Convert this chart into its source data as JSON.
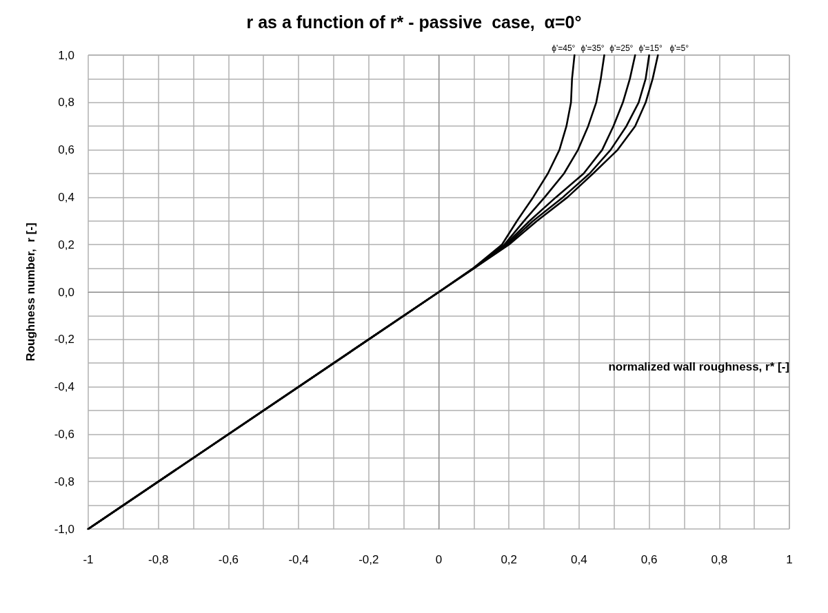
{
  "chart_data": {
    "type": "line",
    "title": "r as a function of r* - passive  case,  α=0°",
    "xlabel": "normalized wall roughness, r* [-]",
    "ylabel": "Roughness number,  r [-]",
    "series": [
      {
        "name": "ϕ'=45°",
        "color": "#000000",
        "x": [
          -1,
          0,
          0.098,
          0.18,
          0.223,
          0.269,
          0.311,
          0.344,
          0.364,
          0.377,
          0.38,
          0.387
        ],
        "values": [
          -1,
          0,
          0.1,
          0.2,
          0.3,
          0.4,
          0.5,
          0.6,
          0.7,
          0.8,
          0.9,
          1.0
        ]
      },
      {
        "name": "ϕ'=35°",
        "color": "#000000",
        "x": [
          -1,
          0,
          0.098,
          0.187,
          0.243,
          0.302,
          0.357,
          0.397,
          0.426,
          0.449,
          0.462,
          0.472
        ],
        "values": [
          -1,
          0,
          0.1,
          0.2,
          0.3,
          0.4,
          0.5,
          0.6,
          0.7,
          0.8,
          0.9,
          1.0
        ]
      },
      {
        "name": "ϕ'=25°",
        "color": "#000000",
        "x": [
          -1,
          0,
          0.099,
          0.19,
          0.259,
          0.334,
          0.413,
          0.466,
          0.498,
          0.525,
          0.545,
          0.56
        ],
        "values": [
          -1,
          0,
          0.1,
          0.2,
          0.3,
          0.4,
          0.5,
          0.6,
          0.7,
          0.8,
          0.9,
          1.0
        ]
      },
      {
        "name": "ϕ'=15°",
        "color": "#000000",
        "x": [
          -1,
          0,
          0.1,
          0.195,
          0.269,
          0.354,
          0.43,
          0.49,
          0.535,
          0.57,
          0.59,
          0.6
        ],
        "values": [
          -1,
          0,
          0.1,
          0.2,
          0.3,
          0.4,
          0.5,
          0.6,
          0.7,
          0.8,
          0.9,
          1.0
        ]
      },
      {
        "name": "ϕ'=5°",
        "color": "#000000",
        "x": [
          -1,
          0,
          0.1,
          0.2,
          0.28,
          0.367,
          0.44,
          0.51,
          0.56,
          0.59,
          0.61,
          0.625
        ],
        "values": [
          -1,
          0,
          0.1,
          0.2,
          0.3,
          0.4,
          0.5,
          0.6,
          0.7,
          0.8,
          0.9,
          1.0
        ]
      }
    ],
    "xlim": [
      -1,
      1
    ],
    "xticks": [
      {
        "value": -1,
        "label": "-1"
      },
      {
        "value": -0.9,
        "label": null
      },
      {
        "value": -0.8,
        "label": "-0,8"
      },
      {
        "value": -0.7,
        "label": null
      },
      {
        "value": -0.6,
        "label": "-0,6"
      },
      {
        "value": -0.5,
        "label": null
      },
      {
        "value": -0.4,
        "label": "-0,4"
      },
      {
        "value": -0.3,
        "label": null
      },
      {
        "value": -0.2,
        "label": "-0,2"
      },
      {
        "value": -0.1,
        "label": null
      },
      {
        "value": 0,
        "label": "0"
      },
      {
        "value": 0.1,
        "label": null
      },
      {
        "value": 0.2,
        "label": "0,2"
      },
      {
        "value": 0.3,
        "label": null
      },
      {
        "value": 0.4,
        "label": "0,4"
      },
      {
        "value": 0.5,
        "label": null
      },
      {
        "value": 0.6,
        "label": "0,6"
      },
      {
        "value": 0.7,
        "label": null
      },
      {
        "value": 0.8,
        "label": "0,8"
      },
      {
        "value": 0.9,
        "label": null
      },
      {
        "value": 1,
        "label": "1"
      }
    ],
    "ylim": [
      -1,
      1
    ],
    "yticks": [
      {
        "value": -1,
        "label": "-1,0"
      },
      {
        "value": -0.9,
        "label": null
      },
      {
        "value": -0.8,
        "label": "-0,8"
      },
      {
        "value": -0.7,
        "label": null
      },
      {
        "value": -0.6,
        "label": "-0,6"
      },
      {
        "value": -0.5,
        "label": null
      },
      {
        "value": -0.4,
        "label": "-0,4"
      },
      {
        "value": -0.3,
        "label": null
      },
      {
        "value": -0.2,
        "label": "-0,2"
      },
      {
        "value": -0.1,
        "label": null
      },
      {
        "value": 0,
        "label": "0,0"
      },
      {
        "value": 0.1,
        "label": null
      },
      {
        "value": 0.2,
        "label": "0,2"
      },
      {
        "value": 0.3,
        "label": null
      },
      {
        "value": 0.4,
        "label": "0,4"
      },
      {
        "value": 0.5,
        "label": null
      },
      {
        "value": 0.6,
        "label": "0,6"
      },
      {
        "value": 0.7,
        "label": null
      },
      {
        "value": 0.8,
        "label": "0,8"
      },
      {
        "value": 0.9,
        "label": null
      },
      {
        "value": 1,
        "label": "1,0"
      }
    ],
    "grid": true,
    "marker": "none",
    "line_style": "solid"
  }
}
